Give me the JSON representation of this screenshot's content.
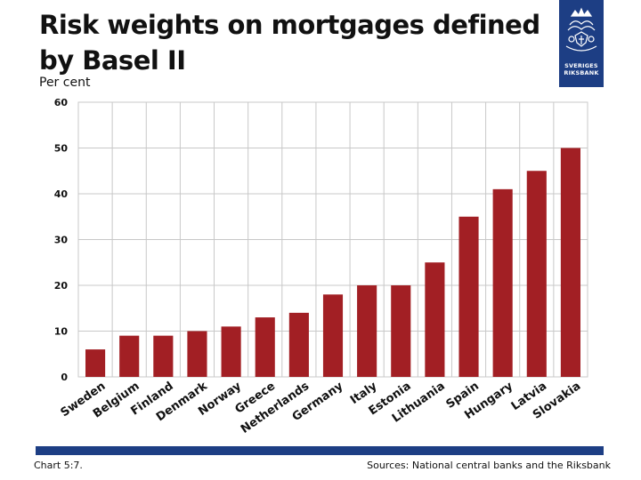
{
  "header": {
    "title": "Risk weights on mortgages defined by Basel II",
    "unit_label": "Per cent"
  },
  "logo": {
    "line1": "SVERIGES",
    "line2": "RIKSBANK",
    "icon": "riksbank-crest-icon",
    "color": "#1d3e84"
  },
  "colors": {
    "bar": "#a21f24",
    "grid": "#c8c8c8",
    "accent": "#1d3e84"
  },
  "chart_data": {
    "type": "bar",
    "title": "Risk weights on mortgages defined by Basel II",
    "ylabel": "Per cent",
    "xlabel": "",
    "ylim": [
      0,
      60
    ],
    "yticks": [
      0,
      10,
      20,
      30,
      40,
      50,
      60
    ],
    "grid": true,
    "categories": [
      "Sweden",
      "Belgium",
      "Finland",
      "Denmark",
      "Norway",
      "Greece",
      "Netherlands",
      "Germany",
      "Italy",
      "Estonia",
      "Lithuania",
      "Spain",
      "Hungary",
      "Latvia",
      "Slovakia"
    ],
    "values": [
      6,
      9,
      9,
      10,
      11,
      13,
      14,
      18,
      20,
      20,
      25,
      35,
      41,
      45,
      50
    ]
  },
  "footer": {
    "chart_number": "Chart 5:7.",
    "sources": "Sources: National central banks and the Riksbank"
  }
}
